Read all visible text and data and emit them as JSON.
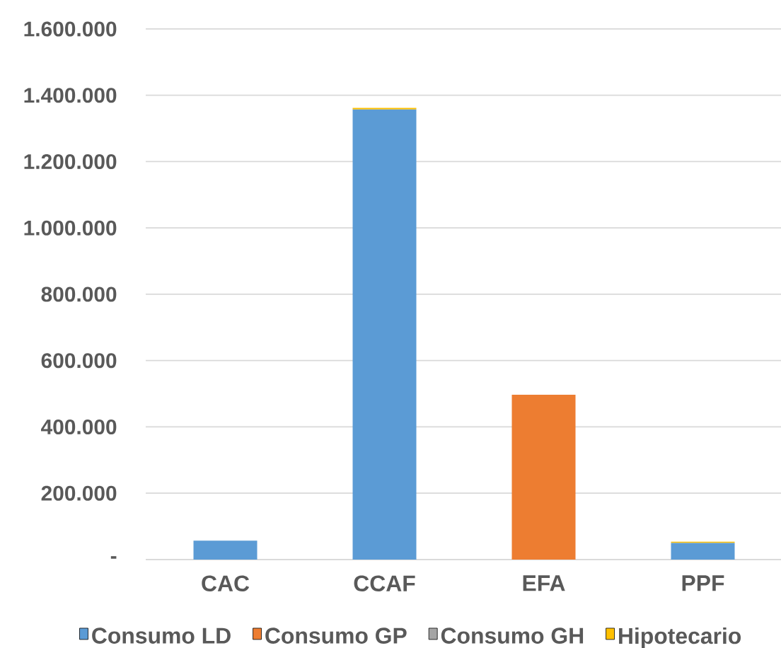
{
  "chart_data": {
    "type": "bar",
    "stacked": true,
    "categories": [
      "CAC",
      "CCAF",
      "EFA",
      "PPF"
    ],
    "series": [
      {
        "name": "Consumo LD",
        "color": "#5b9bd5",
        "values": [
          57000,
          1357000,
          0,
          50000
        ]
      },
      {
        "name": "Consumo GP",
        "color": "#ed7d31",
        "values": [
          0,
          0,
          497000,
          0
        ]
      },
      {
        "name": "Consumo GH",
        "color": "#a5a5a5",
        "values": [
          null,
          null,
          null,
          null
        ]
      },
      {
        "name": "Hipotecario",
        "color": "#ffc000",
        "values": [
          0,
          5000,
          0,
          4000
        ]
      }
    ],
    "ylim": [
      0,
      1600000
    ],
    "yticks": [
      {
        "value": 0,
        "label": "-"
      },
      {
        "value": 200000,
        "label": "200.000"
      },
      {
        "value": 400000,
        "label": "400.000"
      },
      {
        "value": 600000,
        "label": "600.000"
      },
      {
        "value": 800000,
        "label": "800.000"
      },
      {
        "value": 1000000,
        "label": "1.000.000"
      },
      {
        "value": 1200000,
        "label": "1.200.000"
      },
      {
        "value": 1400000,
        "label": "1.400.000"
      },
      {
        "value": 1600000,
        "label": "1.600.000"
      }
    ],
    "grid": "y",
    "legend": "bottom"
  }
}
